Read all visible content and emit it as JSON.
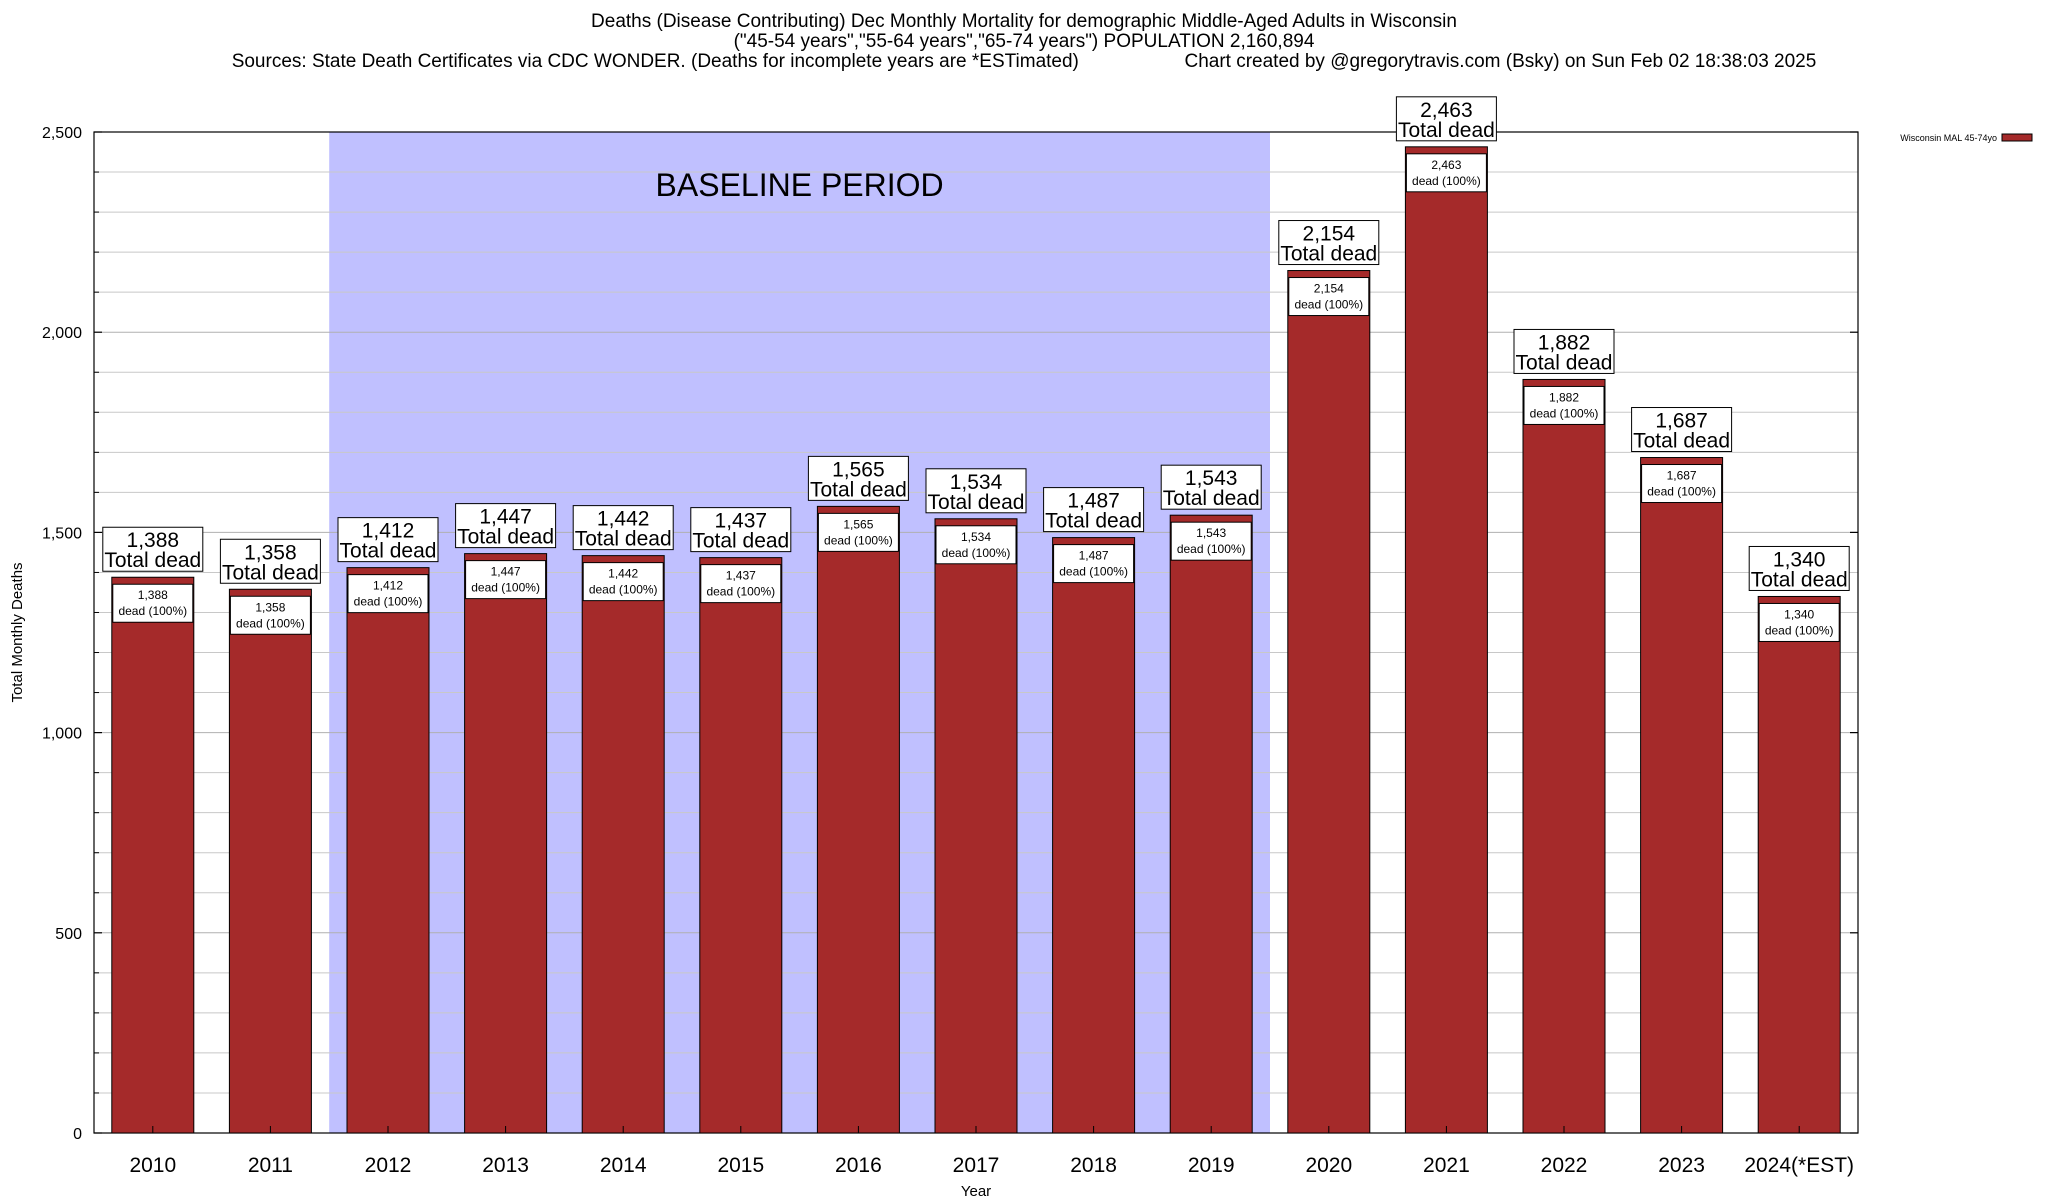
{
  "chart_data": {
    "type": "bar",
    "title_line1": "Deaths (Disease Contributing) Dec Monthly Mortality for demographic Middle-Aged Adults in Wisconsin",
    "title_line2": "(\"45-54 years\",\"55-64 years\",\"65-74 years\") POPULATION 2,160,894",
    "title_line3_left": "Sources: State Death Certificates via CDC WONDER. (Deaths for incomplete years are *ESTimated)",
    "title_line3_right": "Chart created by @gregorytravis.com (Bsky) on Sun Feb 02 18:38:03 2025",
    "xlabel": "Year",
    "ylabel": "Total Monthly Deaths",
    "ylim": [
      0,
      2500
    ],
    "yticks": [
      0,
      500,
      1000,
      1500,
      2000,
      2500
    ],
    "ytick_labels": [
      "0",
      "500",
      "1,000",
      "1,500",
      "2,000",
      "2,500"
    ],
    "categories": [
      "2010",
      "2011",
      "2012",
      "2013",
      "2014",
      "2015",
      "2016",
      "2017",
      "2018",
      "2019",
      "2020",
      "2021",
      "2022",
      "2023",
      "2024(*EST)"
    ],
    "series": [
      {
        "name": "Wisconsin MAL 45-74yo",
        "color": "#a52a2a",
        "values": [
          1388,
          1358,
          1412,
          1447,
          1442,
          1437,
          1565,
          1534,
          1487,
          1543,
          2154,
          2463,
          1882,
          1687,
          1340
        ]
      }
    ],
    "value_labels": [
      "1,388",
      "1,358",
      "1,412",
      "1,447",
      "1,442",
      "1,437",
      "1,565",
      "1,534",
      "1,487",
      "1,543",
      "2,154",
      "2,463",
      "1,882",
      "1,687",
      "1,340"
    ],
    "total_label": "Total dead",
    "inner_label": "dead (100%)",
    "baseline": {
      "label": "BASELINE PERIOD",
      "from": "2012",
      "to": "2019",
      "color": "#c0c0ff"
    },
    "grid": true,
    "legend_position": "top-right"
  }
}
